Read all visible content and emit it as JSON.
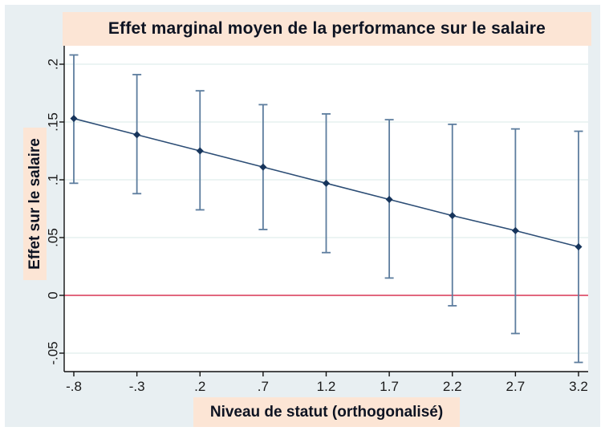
{
  "title": "Effet marginal moyen de la performance sur le salaire",
  "axes": {
    "xlabel": "Niveau de statut (orthogonalisé)",
    "ylabel": "Effet sur le salaire"
  },
  "chart_data": {
    "type": "line",
    "title": "Effet marginal moyen de la performance sur le salaire",
    "xlabel": "Niveau de statut (orthogonalisé)",
    "ylabel": "Effet sur le salaire",
    "x": [
      -0.8,
      -0.3,
      0.2,
      0.7,
      1.2,
      1.7,
      2.2,
      2.7,
      3.2
    ],
    "series": [
      {
        "name": "Effet marginal moyen",
        "values": [
          0.153,
          0.139,
          0.125,
          0.111,
          0.097,
          0.083,
          0.069,
          0.056,
          0.042
        ]
      }
    ],
    "ci_lower": [
      0.097,
      0.088,
      0.074,
      0.057,
      0.037,
      0.015,
      -0.009,
      -0.033,
      -0.058
    ],
    "ci_upper": [
      0.208,
      0.191,
      0.177,
      0.165,
      0.157,
      0.152,
      0.148,
      0.144,
      0.142
    ],
    "x_ticks": [
      {
        "value": -0.8,
        "label": "-.8"
      },
      {
        "value": -0.3,
        "label": "-.3"
      },
      {
        "value": 0.2,
        "label": ".2"
      },
      {
        "value": 0.7,
        "label": ".7"
      },
      {
        "value": 1.2,
        "label": "1.2"
      },
      {
        "value": 1.7,
        "label": "1.7"
      },
      {
        "value": 2.2,
        "label": "2.2"
      },
      {
        "value": 2.7,
        "label": "2.7"
      },
      {
        "value": 3.2,
        "label": "3.2"
      }
    ],
    "y_ticks": [
      {
        "value": -0.05,
        "label": "-.05"
      },
      {
        "value": 0,
        "label": "0"
      },
      {
        "value": 0.05,
        "label": ".05"
      },
      {
        "value": 0.1,
        "label": ".1"
      },
      {
        "value": 0.15,
        "label": ".15"
      },
      {
        "value": 0.2,
        "label": ".2"
      }
    ],
    "xlim": [
      -0.88,
      3.28
    ],
    "ylim": [
      -0.068,
      0.216
    ],
    "grid": true,
    "legend": "none",
    "zero_line": 0,
    "colors": {
      "line": "#2c4d75",
      "marker": "#17355c",
      "error_bar": "#5d7d9e",
      "zero_line": "#e2677e",
      "gridline": "#e5f1ef",
      "axis": "#111111",
      "tick_label": "#1a1a1a",
      "figure_background": "#e8eff2",
      "plot_background": "#ffffff",
      "label_band": "#fce5d5"
    }
  }
}
